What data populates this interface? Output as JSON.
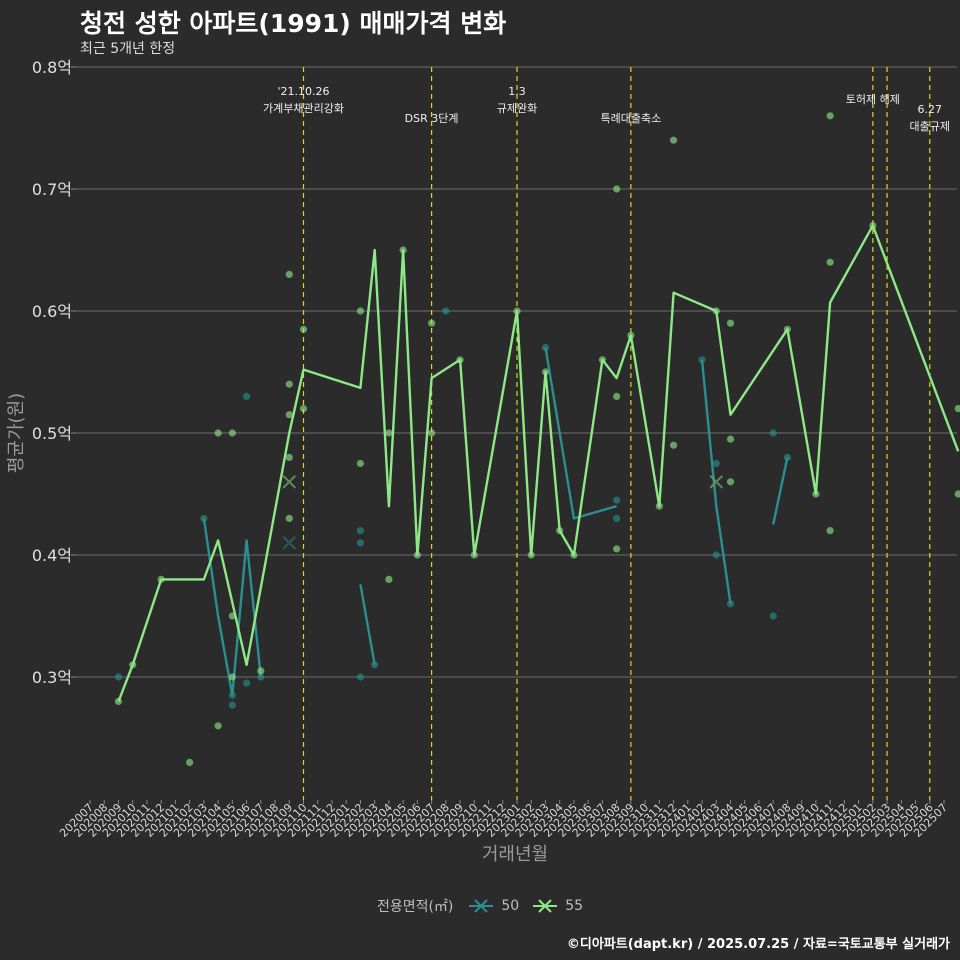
{
  "title": "청전 성한 아파트(1991) 매매가격 변화",
  "subtitle": "최근 5개년 한정",
  "caption": "©디아파트(dapt.kr) / 2025.07.25 / 자료=국토교통부 실거래가",
  "chart_data": {
    "type": "line",
    "xlabel": "거래년월",
    "ylabel": "평균가(원)",
    "ylim": [
      0.2,
      0.8
    ],
    "yticks": [
      {
        "value": 0.3,
        "label": "0.3억"
      },
      {
        "value": 0.4,
        "label": "0.4억"
      },
      {
        "value": 0.5,
        "label": "0.5억"
      },
      {
        "value": 0.6,
        "label": "0.6억"
      },
      {
        "value": 0.7,
        "label": "0.7억"
      },
      {
        "value": 0.8,
        "label": "0.8억"
      }
    ],
    "categories": [
      "202007",
      "202008",
      "202009",
      "202010",
      "202011",
      "202012",
      "202101",
      "202102",
      "202103",
      "202104",
      "202105",
      "202106",
      "202107",
      "202108",
      "202109",
      "202110",
      "202111",
      "202112",
      "202201",
      "202202",
      "202203",
      "202204",
      "202205",
      "202206",
      "202207",
      "202208",
      "202209",
      "202210",
      "202211",
      "202212",
      "202301",
      "202302",
      "202303",
      "202304",
      "202305",
      "202306",
      "202307",
      "202308",
      "202309",
      "202310",
      "202311",
      "202312",
      "202401",
      "202402",
      "202403",
      "202404",
      "202405",
      "202406",
      "202407",
      "202408",
      "202409",
      "202410",
      "202411",
      "202412",
      "202501",
      "202502",
      "202503",
      "202504",
      "202505",
      "202506",
      "202507"
    ],
    "grid": true,
    "legend": {
      "title": "전용면적(㎡)",
      "position": "bottom",
      "items": [
        {
          "label": "50",
          "color": "#2a8f91"
        },
        {
          "label": "55",
          "color": "#8ee887"
        }
      ]
    },
    "events": [
      {
        "x": "202110",
        "label": "'21.10.26\n가계부채관리강화",
        "row": 0
      },
      {
        "x": "202207",
        "label": "DSR 3단계",
        "row": 1
      },
      {
        "x": "202301",
        "label": "1.3\n규제완화",
        "row": 0
      },
      {
        "x": "202309",
        "label": "특례대출축소",
        "row": 1
      },
      {
        "x": "202502",
        "label": "토허제 해제",
        "row": 0
      },
      {
        "x": "202503",
        "label": "",
        "row": 0
      },
      {
        "x": "202506",
        "label": "6.27\n대출규제",
        "row": 1
      }
    ],
    "series": [
      {
        "name": "50",
        "color": "#2a8f91",
        "line": [
          [
            [
              "202103",
              0.43
            ],
            [
              "202104",
              0.35
            ],
            [
              "202105",
              0.285
            ],
            [
              "202106",
              0.412
            ],
            [
              "202107",
              0.3
            ]
          ],
          [
            [
              "202202",
              0.376
            ],
            [
              "202203",
              0.31
            ]
          ],
          [
            [
              "202303",
              0.57
            ],
            [
              "202305",
              0.43
            ],
            [
              "202308",
              0.44
            ]
          ],
          [
            [
              "202402",
              0.56
            ],
            [
              "202403",
              0.44
            ],
            [
              "202404",
              0.36
            ]
          ],
          [
            [
              "202407",
              0.425
            ],
            [
              "202408",
              0.48
            ]
          ]
        ],
        "points": [
          [
            "202009",
            0.3
          ],
          [
            "202103",
            0.43
          ],
          [
            "202105",
            0.277
          ],
          [
            "202105",
            0.285
          ],
          [
            "202106",
            0.53
          ],
          [
            "202106",
            0.295
          ],
          [
            "202107",
            0.3
          ],
          [
            "202202",
            0.42
          ],
          [
            "202202",
            0.41
          ],
          [
            "202202",
            0.3
          ],
          [
            "202203",
            0.31
          ],
          [
            "202208",
            0.6
          ],
          [
            "202303",
            0.57
          ],
          [
            "202308",
            0.445
          ],
          [
            "202308",
            0.43
          ],
          [
            "202402",
            0.56
          ],
          [
            "202403",
            0.475
          ],
          [
            "202403",
            0.4
          ],
          [
            "202404",
            0.36
          ],
          [
            "202407",
            0.5
          ],
          [
            "202407",
            0.35
          ],
          [
            "202408",
            0.48
          ]
        ],
        "cross": [
          [
            "202109",
            0.41
          ]
        ]
      },
      {
        "name": "55",
        "color": "#8ee887",
        "line": [
          [
            [
              "202009",
              0.28
            ],
            [
              "202010",
              0.31
            ],
            [
              "202012",
              0.38
            ],
            [
              "202103",
              0.38
            ],
            [
              "202104",
              0.412
            ],
            [
              "202106",
              0.31
            ],
            [
              "202109",
              0.5
            ],
            [
              "202110",
              0.552
            ],
            [
              "202202",
              0.537
            ],
            [
              "202203",
              0.65
            ],
            [
              "202204",
              0.44
            ],
            [
              "202205",
              0.65
            ],
            [
              "202206",
              0.4
            ],
            [
              "202207",
              0.545
            ],
            [
              "202209",
              0.56
            ],
            [
              "202210",
              0.4
            ],
            [
              "202301",
              0.6
            ],
            [
              "202302",
              0.4
            ],
            [
              "202303",
              0.55
            ],
            [
              "202304",
              0.42
            ],
            [
              "202305",
              0.4
            ],
            [
              "202307",
              0.56
            ],
            [
              "202308",
              0.545
            ],
            [
              "202309",
              0.58
            ],
            [
              "202311",
              0.44
            ],
            [
              "202312",
              0.615
            ],
            [
              "202403",
              0.6
            ],
            [
              "202404",
              0.515
            ],
            [
              "202408",
              0.585
            ],
            [
              "202410",
              0.45
            ],
            [
              "202411",
              0.607
            ],
            [
              "202502",
              0.67
            ],
            [
              "202508",
              0.485
            ]
          ]
        ],
        "points": [
          [
            "202009",
            0.28
          ],
          [
            "202010",
            0.31
          ],
          [
            "202012",
            0.38
          ],
          [
            "202102",
            0.23
          ],
          [
            "202104",
            0.26
          ],
          [
            "202104",
            0.5
          ],
          [
            "202105",
            0.5
          ],
          [
            "202105",
            0.35
          ],
          [
            "202105",
            0.3
          ],
          [
            "202107",
            0.305
          ],
          [
            "202109",
            0.63
          ],
          [
            "202109",
            0.54
          ],
          [
            "202109",
            0.515
          ],
          [
            "202109",
            0.48
          ],
          [
            "202109",
            0.43
          ],
          [
            "202110",
            0.585
          ],
          [
            "202110",
            0.52
          ],
          [
            "202202",
            0.6
          ],
          [
            "202202",
            0.475
          ],
          [
            "202204",
            0.5
          ],
          [
            "202204",
            0.38
          ],
          [
            "202205",
            0.65
          ],
          [
            "202206",
            0.4
          ],
          [
            "202207",
            0.59
          ],
          [
            "202207",
            0.5
          ],
          [
            "202209",
            0.56
          ],
          [
            "202210",
            0.4
          ],
          [
            "202301",
            0.6
          ],
          [
            "202302",
            0.4
          ],
          [
            "202303",
            0.55
          ],
          [
            "202304",
            0.42
          ],
          [
            "202305",
            0.4
          ],
          [
            "202307",
            0.56
          ],
          [
            "202308",
            0.7
          ],
          [
            "202308",
            0.53
          ],
          [
            "202308",
            0.405
          ],
          [
            "202309",
            0.58
          ],
          [
            "202311",
            0.44
          ],
          [
            "202312",
            0.74
          ],
          [
            "202312",
            0.49
          ],
          [
            "202403",
            0.6
          ],
          [
            "202404",
            0.59
          ],
          [
            "202404",
            0.495
          ],
          [
            "202404",
            0.46
          ],
          [
            "202408",
            0.585
          ],
          [
            "202410",
            0.45
          ],
          [
            "202411",
            0.76
          ],
          [
            "202411",
            0.64
          ],
          [
            "202411",
            0.42
          ],
          [
            "202502",
            0.67
          ],
          [
            "202508",
            0.52
          ],
          [
            "202508",
            0.45
          ]
        ],
        "cross": [
          [
            "202109",
            0.46
          ],
          [
            "202403",
            0.46
          ]
        ]
      }
    ]
  }
}
